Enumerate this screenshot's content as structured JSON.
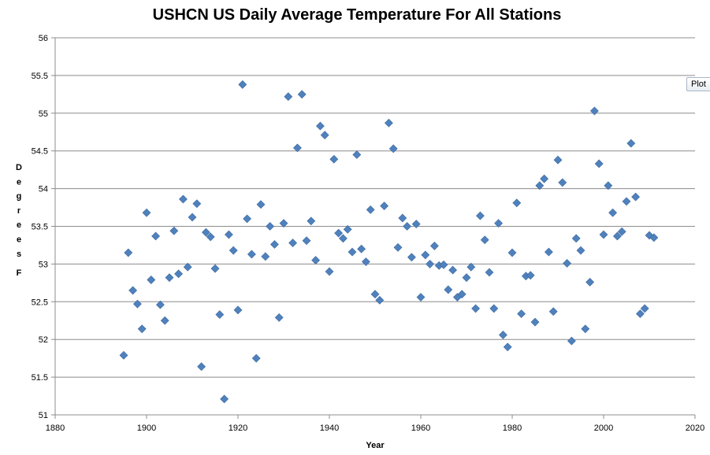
{
  "chart_data": {
    "type": "scatter",
    "title": "USHCN US Daily Average Temperature For All Stations",
    "xlabel": "Year",
    "ylabel": "Degrees F",
    "xlim": [
      1880,
      2020
    ],
    "ylim": [
      51,
      56
    ],
    "x_ticks": [
      1880,
      1900,
      1920,
      1940,
      1960,
      1980,
      2000,
      2020
    ],
    "y_ticks": [
      51,
      51.5,
      52,
      52.5,
      53,
      53.5,
      54,
      54.5,
      55,
      55.5,
      56
    ],
    "grid": "horizontal",
    "marker": "diamond",
    "marker_color": "#4f81bd",
    "x": [
      1895,
      1896,
      1897,
      1898,
      1899,
      1900,
      1901,
      1902,
      1903,
      1904,
      1905,
      1906,
      1907,
      1908,
      1909,
      1910,
      1911,
      1912,
      1913,
      1914,
      1915,
      1916,
      1917,
      1918,
      1919,
      1920,
      1921,
      1922,
      1923,
      1924,
      1925,
      1926,
      1927,
      1928,
      1929,
      1930,
      1931,
      1932,
      1933,
      1934,
      1935,
      1936,
      1937,
      1938,
      1939,
      1940,
      1941,
      1942,
      1943,
      1944,
      1945,
      1946,
      1947,
      1948,
      1949,
      1950,
      1951,
      1952,
      1953,
      1954,
      1955,
      1956,
      1957,
      1958,
      1959,
      1960,
      1961,
      1962,
      1963,
      1964,
      1965,
      1966,
      1967,
      1968,
      1969,
      1970,
      1971,
      1972,
      1973,
      1974,
      1975,
      1976,
      1977,
      1978,
      1979,
      1980,
      1981,
      1982,
      1983,
      1984,
      1985,
      1986,
      1987,
      1988,
      1989,
      1990,
      1991,
      1992,
      1993,
      1994,
      1995,
      1996,
      1997,
      1998,
      1999,
      2000,
      2001,
      2002,
      2003,
      2004,
      2005,
      2006,
      2007,
      2008,
      2009,
      2010,
      2011
    ],
    "y": [
      51.79,
      53.15,
      52.65,
      52.47,
      52.14,
      53.68,
      52.79,
      53.37,
      52.46,
      52.25,
      52.82,
      53.44,
      52.87,
      53.86,
      52.96,
      53.62,
      53.8,
      51.64,
      53.42,
      53.36,
      52.94,
      52.33,
      51.21,
      53.39,
      53.18,
      52.39,
      55.38,
      53.6,
      53.13,
      51.75,
      53.79,
      53.1,
      53.5,
      53.26,
      52.29,
      53.54,
      55.22,
      53.28,
      54.54,
      55.25,
      53.31,
      53.57,
      53.05,
      54.83,
      54.71,
      52.9,
      54.39,
      53.41,
      53.34,
      53.46,
      53.16,
      54.45,
      53.2,
      53.03,
      53.72,
      52.6,
      52.52,
      53.77,
      54.87,
      54.53,
      53.22,
      53.61,
      53.5,
      53.09,
      53.53,
      52.56,
      53.12,
      53.0,
      53.24,
      52.98,
      52.99,
      52.66,
      52.92,
      52.56,
      52.6,
      52.82,
      52.96,
      52.41,
      53.64,
      53.32,
      52.89,
      52.41,
      53.54,
      52.06,
      51.9,
      53.15,
      53.81,
      52.34,
      52.84,
      52.85,
      52.23,
      54.04,
      54.13,
      53.16,
      52.37,
      54.38,
      54.08,
      53.01,
      51.98,
      53.34,
      53.18,
      52.14,
      52.76,
      55.03,
      54.33,
      53.39,
      54.04,
      53.68,
      53.37,
      53.43,
      53.83,
      54.6,
      53.89,
      52.34,
      52.41,
      53.38,
      53.35
    ]
  },
  "plot_button_label": "Plot"
}
